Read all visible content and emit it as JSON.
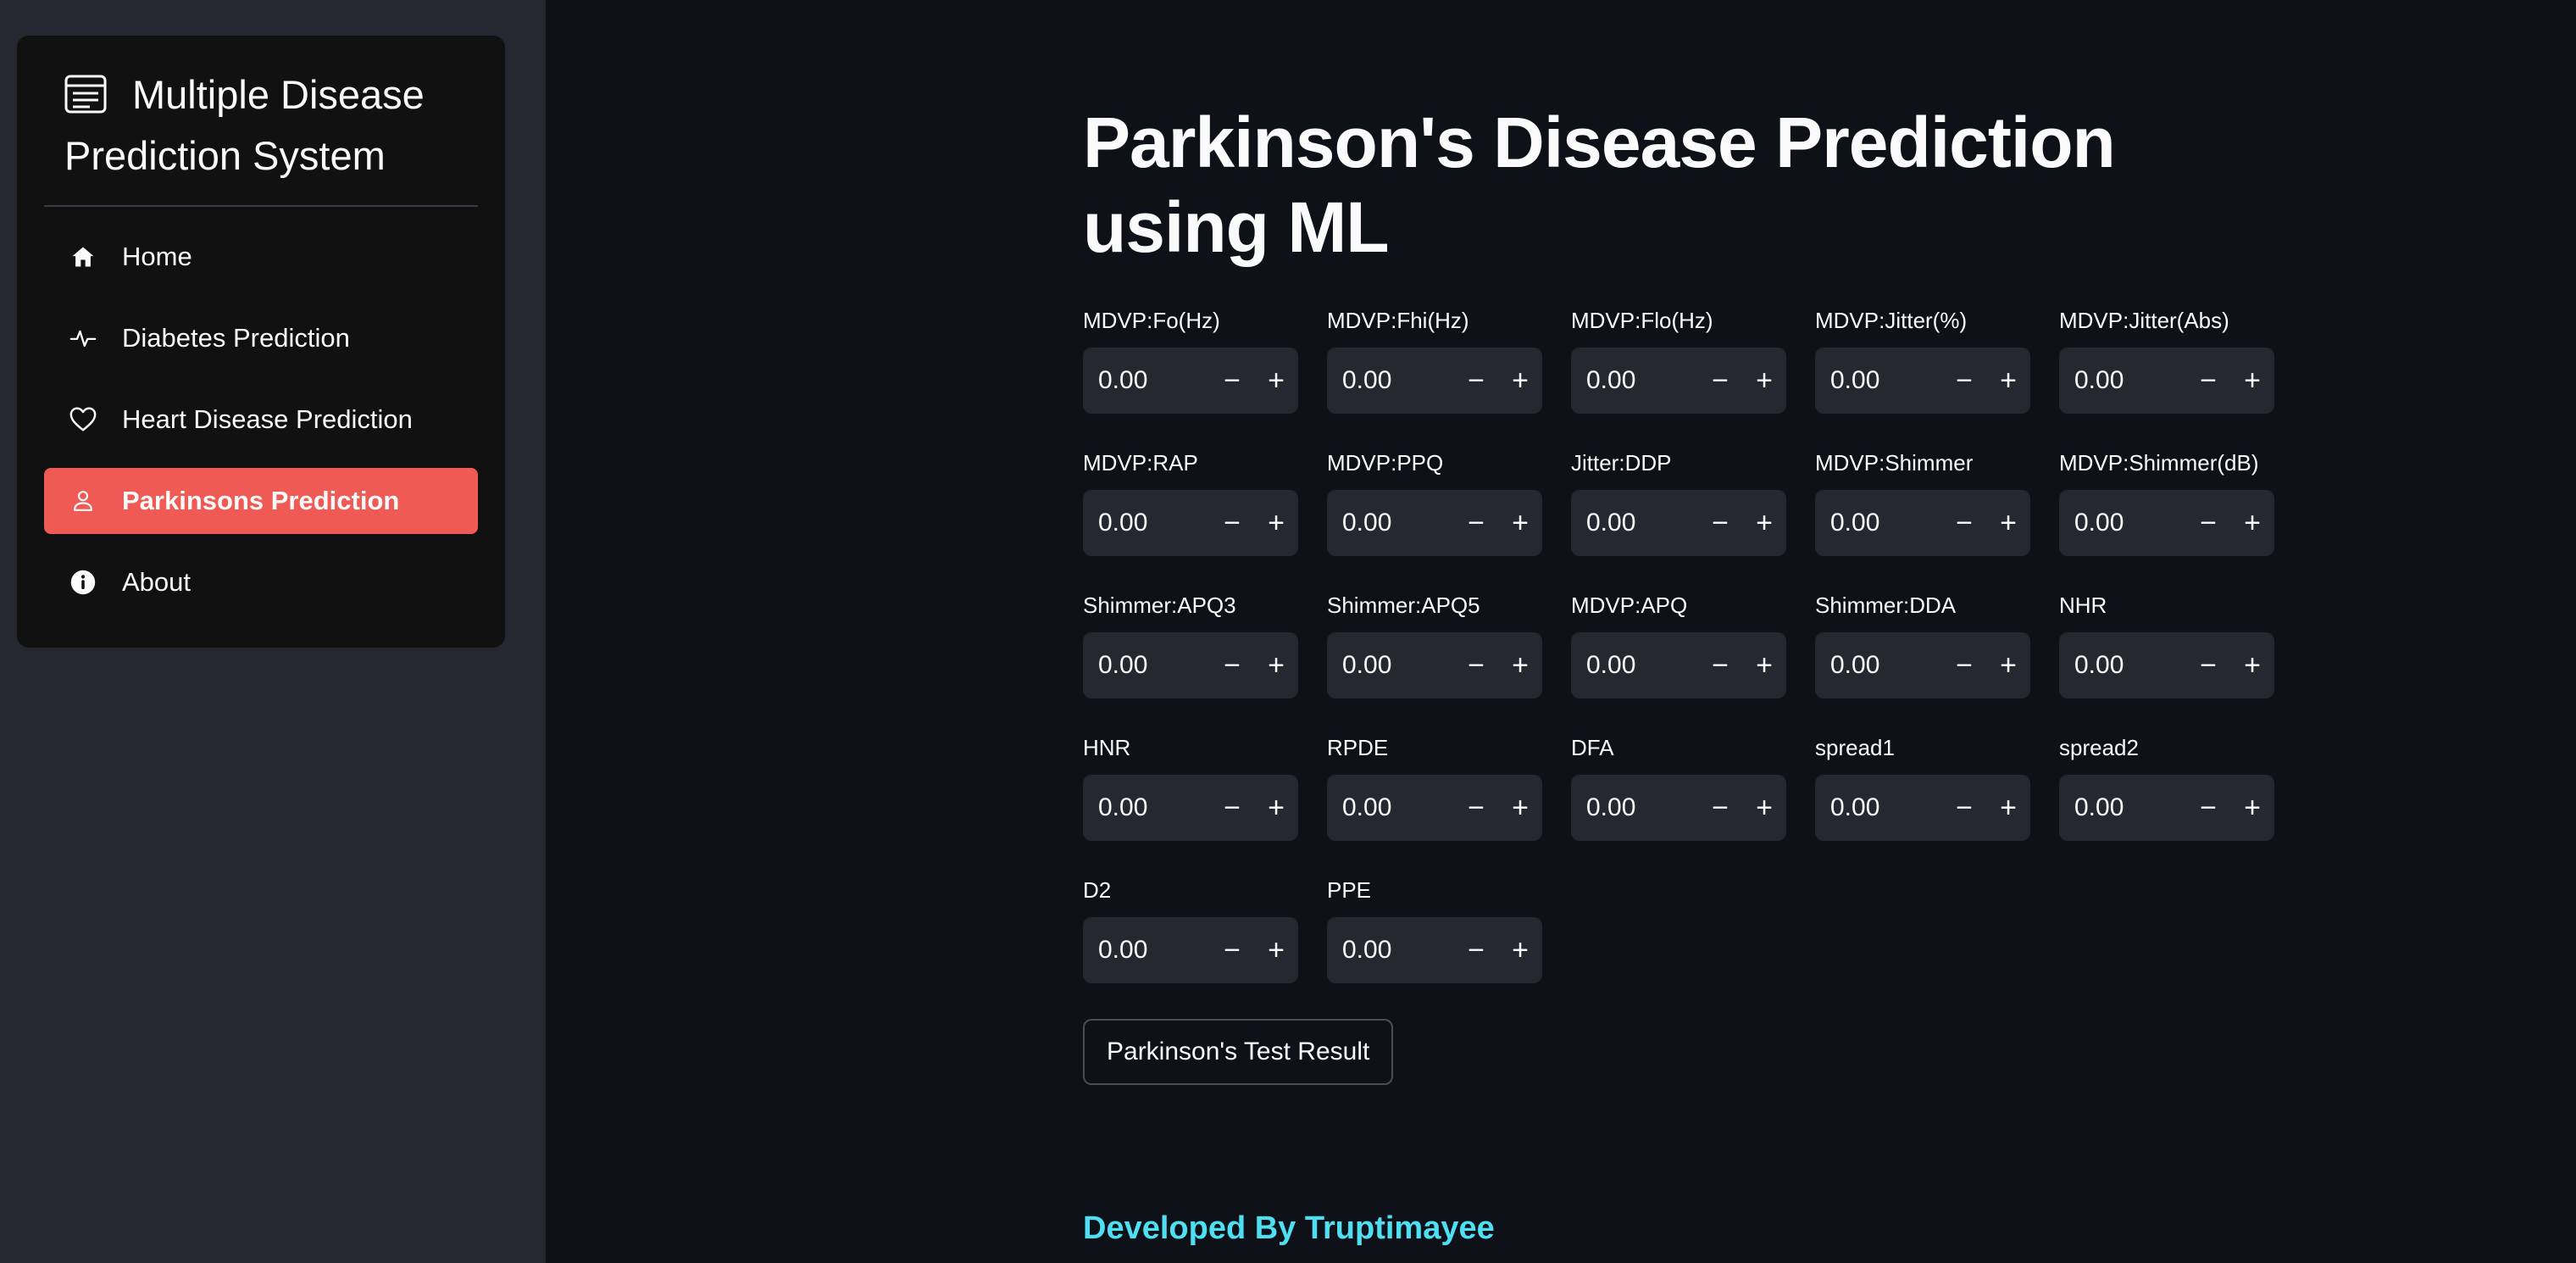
{
  "sidebar": {
    "title": "Multiple Disease Prediction System",
    "items": [
      {
        "label": "Home",
        "icon": "house-icon"
      },
      {
        "label": "Diabetes Prediction",
        "icon": "activity-icon"
      },
      {
        "label": "Heart Disease Prediction",
        "icon": "heart-icon"
      },
      {
        "label": "Parkinsons Prediction",
        "icon": "person-icon"
      },
      {
        "label": "About",
        "icon": "info-icon"
      }
    ],
    "active_index": 3,
    "active_color": "#ef5a55"
  },
  "main": {
    "title": "Parkinson's Disease Prediction using ML",
    "fields": [
      {
        "label": "MDVP:Fo(Hz)",
        "value": "0.00"
      },
      {
        "label": "MDVP:Fhi(Hz)",
        "value": "0.00"
      },
      {
        "label": "MDVP:Flo(Hz)",
        "value": "0.00"
      },
      {
        "label": "MDVP:Jitter(%)",
        "value": "0.00"
      },
      {
        "label": "MDVP:Jitter(Abs)",
        "value": "0.00"
      },
      {
        "label": "MDVP:RAP",
        "value": "0.00"
      },
      {
        "label": "MDVP:PPQ",
        "value": "0.00"
      },
      {
        "label": "Jitter:DDP",
        "value": "0.00"
      },
      {
        "label": "MDVP:Shimmer",
        "value": "0.00"
      },
      {
        "label": "MDVP:Shimmer(dB)",
        "value": "0.00"
      },
      {
        "label": "Shimmer:APQ3",
        "value": "0.00"
      },
      {
        "label": "Shimmer:APQ5",
        "value": "0.00"
      },
      {
        "label": "MDVP:APQ",
        "value": "0.00"
      },
      {
        "label": "Shimmer:DDA",
        "value": "0.00"
      },
      {
        "label": "NHR",
        "value": "0.00"
      },
      {
        "label": "HNR",
        "value": "0.00"
      },
      {
        "label": "RPDE",
        "value": "0.00"
      },
      {
        "label": "DFA",
        "value": "0.00"
      },
      {
        "label": "spread1",
        "value": "0.00"
      },
      {
        "label": "spread2",
        "value": "0.00"
      },
      {
        "label": "D2",
        "value": "0.00"
      },
      {
        "label": "PPE",
        "value": "0.00"
      }
    ],
    "minus_label": "−",
    "plus_label": "+",
    "result_button_label": "Parkinson's Test Result",
    "footer_text": "Developed By Truptimayee",
    "footer_color": "#4ee0f2"
  }
}
